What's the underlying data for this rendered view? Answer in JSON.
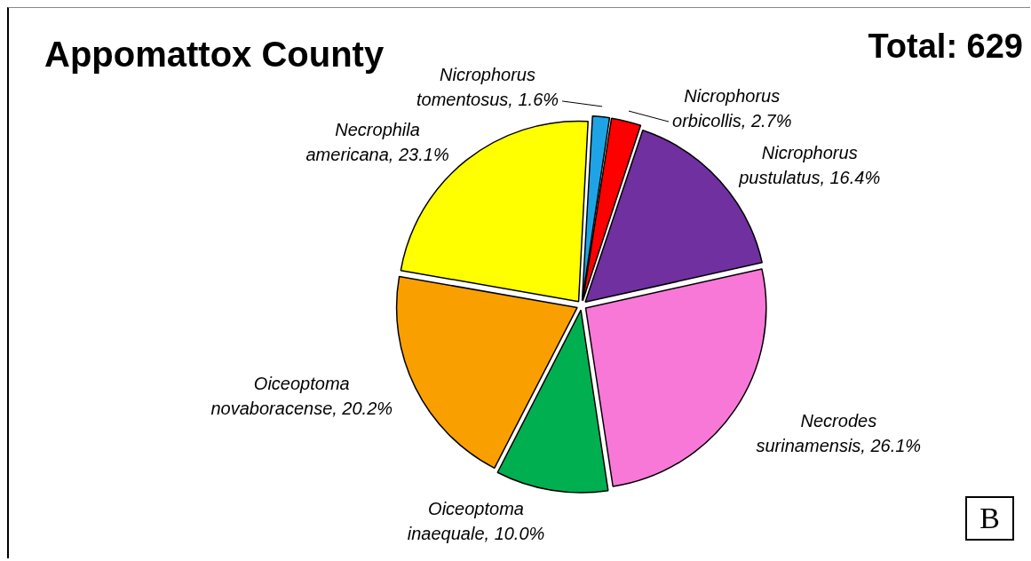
{
  "chart_data": {
    "type": "pie",
    "title": "Appomattox County",
    "categories": [
      "Nicrophorus tomentosus",
      "Nicrophorus orbicollis",
      "Nicrophorus pustulatus",
      "Necrodes surinamensis",
      "Oiceoptoma inaequale",
      "Oiceoptoma novaboracense",
      "Necrophila americana"
    ],
    "values": [
      1.6,
      2.7,
      16.4,
      26.1,
      10.0,
      20.2,
      23.1
    ],
    "colors": [
      "#1ea4e6",
      "#ff0000",
      "#7030a0",
      "#f878d8",
      "#00b050",
      "#f9a000",
      "#ffff00"
    ],
    "value_labels": [
      "1.6%",
      "2.7%",
      "16.4%",
      "26.1%",
      "10.0%",
      "20.2%",
      "23.1%"
    ],
    "legend": false,
    "annotations": [
      "Total: 629",
      "B"
    ]
  }
}
